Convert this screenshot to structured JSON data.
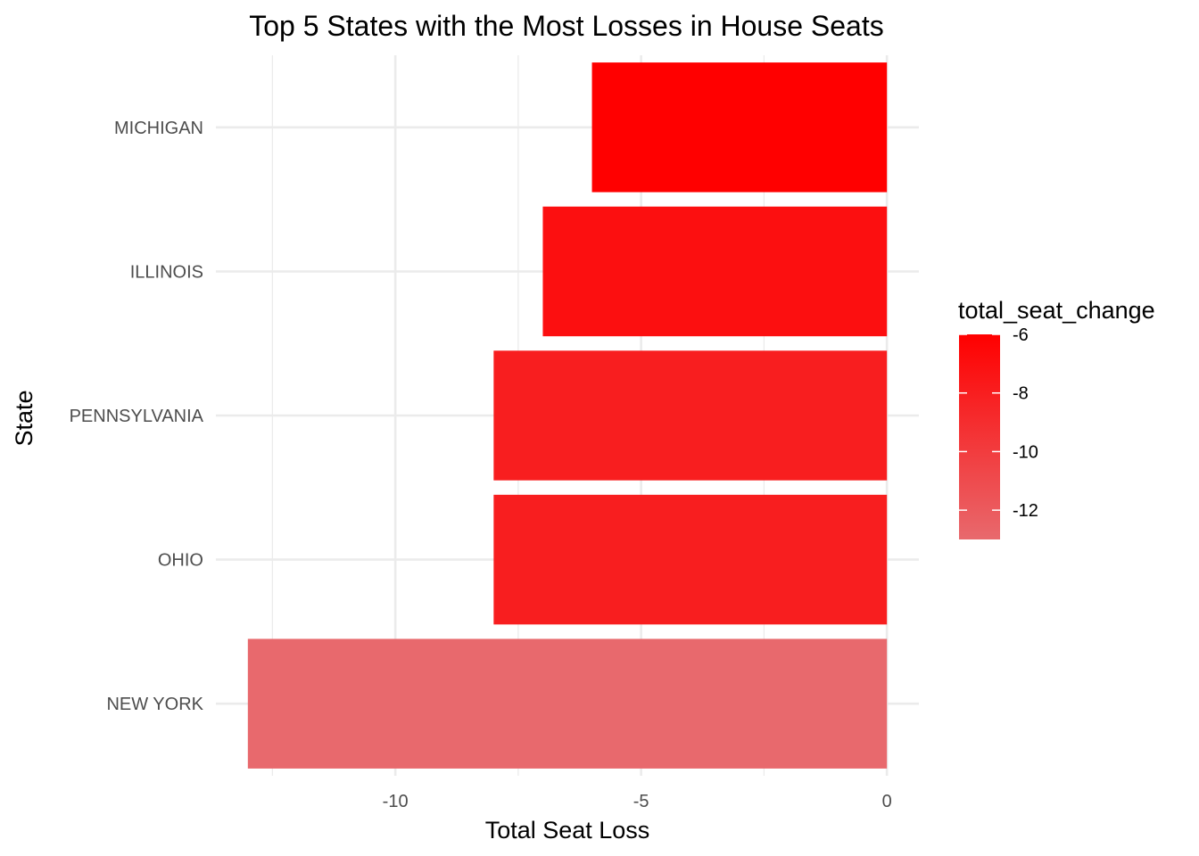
{
  "chart_data": {
    "type": "bar",
    "orientation": "horizontal",
    "title": "Top 5 States with the Most Losses in House Seats",
    "xlabel": "Total Seat Loss",
    "ylabel": "State",
    "categories": [
      "NEW YORK",
      "OHIO",
      "PENNSYLVANIA",
      "ILLINOIS",
      "MICHIGAN"
    ],
    "values": [
      -13,
      -8,
      -8,
      -7,
      -6
    ],
    "xlim": [
      -13.65,
      0.65
    ],
    "x_ticks": [
      -10,
      -5,
      0
    ],
    "x_tick_labels": [
      "-10",
      "-5",
      "0"
    ],
    "grid": true,
    "legend": {
      "title": "total_seat_change",
      "position": "right",
      "type": "colorbar",
      "range": [
        -13,
        -6
      ],
      "breaks": [
        -6,
        -8,
        -10,
        -12
      ],
      "labels": [
        "-6",
        "-8",
        "-10",
        "-12"
      ],
      "color_low": "#e8696d",
      "color_high": "#ff0000"
    }
  }
}
